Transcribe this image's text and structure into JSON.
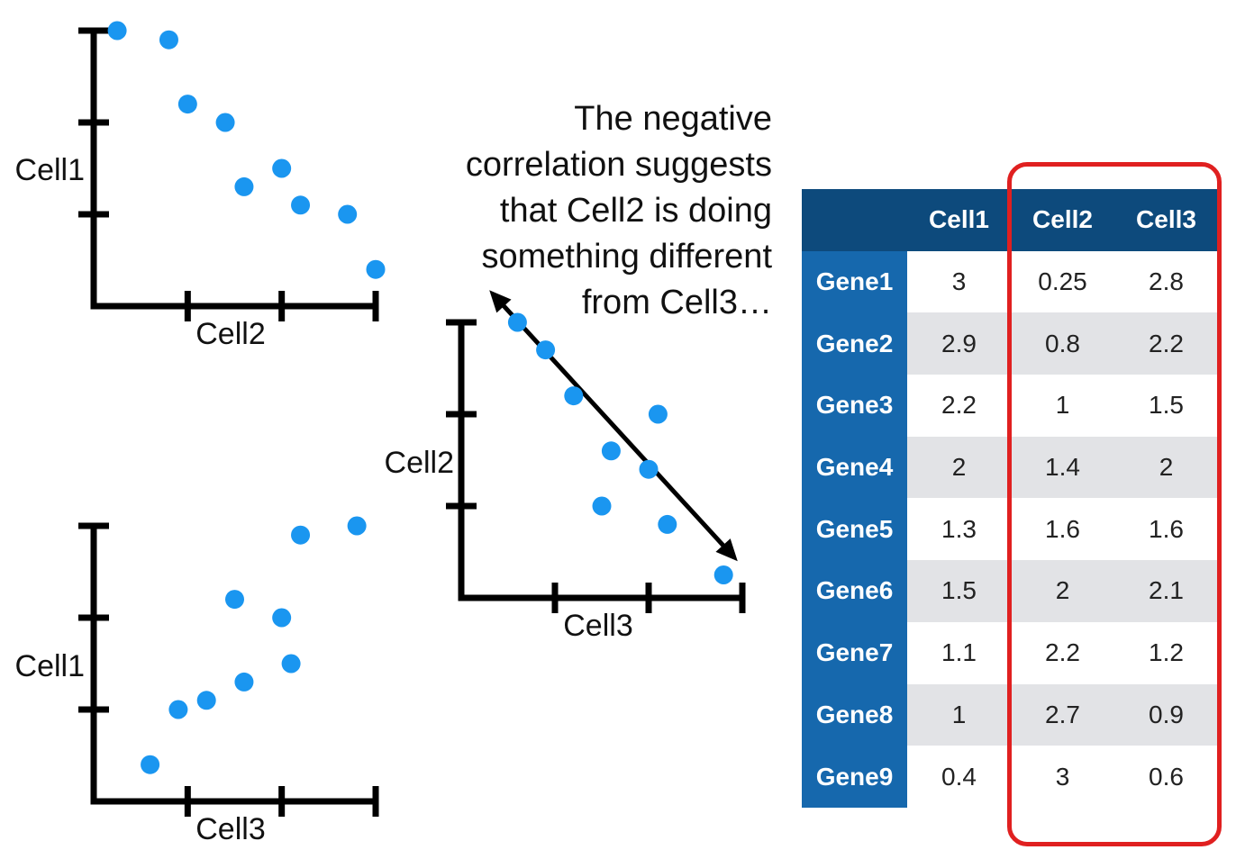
{
  "annotation": {
    "lines": [
      "The negative",
      "correlation suggests",
      "that Cell2 is doing",
      "something different",
      "from Cell3…"
    ]
  },
  "chart_data": [
    {
      "type": "scatter",
      "title": "",
      "xlabel": "Cell2",
      "ylabel": "Cell1",
      "xlim": [
        0,
        3
      ],
      "ylim": [
        0,
        3
      ],
      "ticks": [
        1,
        2,
        3
      ],
      "points": [
        {
          "x": 0.25,
          "y": 3
        },
        {
          "x": 0.8,
          "y": 2.9
        },
        {
          "x": 1,
          "y": 2.2
        },
        {
          "x": 1.4,
          "y": 2
        },
        {
          "x": 1.6,
          "y": 1.3
        },
        {
          "x": 2,
          "y": 1.5
        },
        {
          "x": 2.2,
          "y": 1.1
        },
        {
          "x": 2.7,
          "y": 1
        },
        {
          "x": 3,
          "y": 0.4
        }
      ]
    },
    {
      "type": "scatter",
      "title": "",
      "xlabel": "Cell3",
      "ylabel": "Cell1",
      "xlim": [
        0,
        3
      ],
      "ylim": [
        0,
        3
      ],
      "ticks": [
        1,
        2,
        3
      ],
      "points": [
        {
          "x": 2.8,
          "y": 3
        },
        {
          "x": 2.2,
          "y": 2.9
        },
        {
          "x": 1.5,
          "y": 2.2
        },
        {
          "x": 2,
          "y": 2
        },
        {
          "x": 1.6,
          "y": 1.3
        },
        {
          "x": 2.1,
          "y": 1.5
        },
        {
          "x": 1.2,
          "y": 1.1
        },
        {
          "x": 0.9,
          "y": 1
        },
        {
          "x": 0.6,
          "y": 0.4
        }
      ]
    },
    {
      "type": "scatter",
      "title": "",
      "xlabel": "Cell3",
      "ylabel": "Cell2",
      "xlim": [
        0,
        3
      ],
      "ylim": [
        0,
        3
      ],
      "ticks": [
        1,
        2,
        3
      ],
      "trend_arrow": {
        "from": {
          "x": 0.3,
          "y": 3.35
        },
        "to": {
          "x": 2.95,
          "y": 0.4
        }
      },
      "points": [
        {
          "x": 0.6,
          "y": 3
        },
        {
          "x": 0.9,
          "y": 2.7
        },
        {
          "x": 1.2,
          "y": 2.2
        },
        {
          "x": 2.1,
          "y": 2
        },
        {
          "x": 1.6,
          "y": 1.6
        },
        {
          "x": 2,
          "y": 1.4
        },
        {
          "x": 1.5,
          "y": 1
        },
        {
          "x": 2.2,
          "y": 0.8
        },
        {
          "x": 2.8,
          "y": 0.25
        }
      ]
    },
    {
      "type": "table",
      "columns": [
        "",
        "Cell1",
        "Cell2",
        "Cell3"
      ],
      "rows": [
        {
          "gene": "Gene1",
          "values": [
            "3",
            "0.25",
            "2.8"
          ]
        },
        {
          "gene": "Gene2",
          "values": [
            "2.9",
            "0.8",
            "2.2"
          ]
        },
        {
          "gene": "Gene3",
          "values": [
            "2.2",
            "1",
            "1.5"
          ]
        },
        {
          "gene": "Gene4",
          "values": [
            "2",
            "1.4",
            "2"
          ]
        },
        {
          "gene": "Gene5",
          "values": [
            "1.3",
            "1.6",
            "1.6"
          ]
        },
        {
          "gene": "Gene6",
          "values": [
            "1.5",
            "2",
            "2.1"
          ]
        },
        {
          "gene": "Gene7",
          "values": [
            "1.1",
            "2.2",
            "1.2"
          ]
        },
        {
          "gene": "Gene8",
          "values": [
            "1",
            "2.7",
            "0.9"
          ]
        },
        {
          "gene": "Gene9",
          "values": [
            "0.4",
            "3",
            "0.6"
          ]
        }
      ],
      "highlighted_columns": [
        "Cell2",
        "Cell3"
      ],
      "highlight_color": "#e02020"
    }
  ],
  "colors": {
    "point": "#1a96f0",
    "header_bg": "#0d4a7c",
    "row_header_bg": "#1668ad",
    "stripe": "#e2e3e6",
    "highlight": "#e02020"
  }
}
